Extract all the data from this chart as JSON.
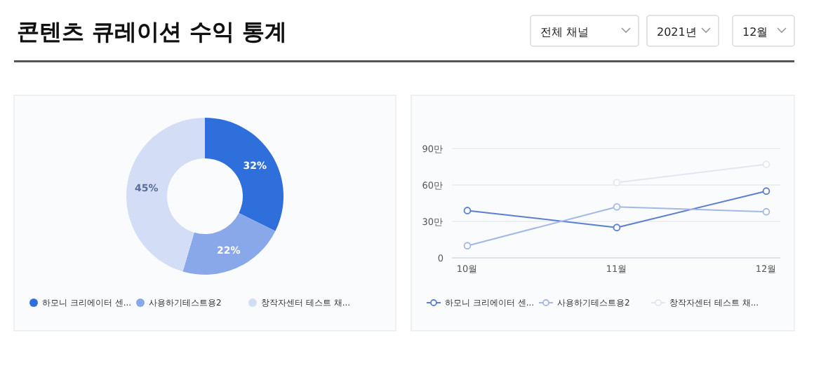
{
  "chart_data": [
    {
      "type": "other",
      "title": "콘텐츠 큐레이션 수익 통계",
      "annotations": [
        "전체 채널",
        "2021년",
        "12월"
      ]
    },
    {
      "type": "donut",
      "categories": [
        "하모니 크리에이터 센...",
        "사용하기테스트용2",
        "창작자센터 테스트 채..."
      ],
      "values": [
        32,
        22,
        45
      ],
      "colors": [
        "#2f6fdc",
        "#88a8ea",
        "#d3ddf5"
      ],
      "value_labels": [
        "32%",
        "22%",
        "45%"
      ],
      "legend": "bottom"
    },
    {
      "type": "line",
      "categories": [
        "10월",
        "11월",
        "12월"
      ],
      "series": [
        {
          "name": "하모니 크리에이터 센...",
          "color": "#5b7fd0",
          "values": [
            39,
            25,
            55
          ]
        },
        {
          "name": "사용하기테스트용2",
          "color": "#a3b8e8",
          "values": [
            10,
            42,
            38
          ]
        },
        {
          "name": "창작자센터 테스트 채...",
          "color": "#e1e6f1",
          "values": [
            null,
            62,
            77
          ]
        }
      ],
      "ylim": [
        0,
        90
      ],
      "yticks": [
        {
          "value": 0,
          "label": "0"
        },
        {
          "value": 30,
          "label": "30만"
        },
        {
          "value": 60,
          "label": "60만"
        },
        {
          "value": 90,
          "label": "90만"
        }
      ],
      "grid": "y",
      "marker": "circle",
      "legend": "bottom"
    }
  ]
}
